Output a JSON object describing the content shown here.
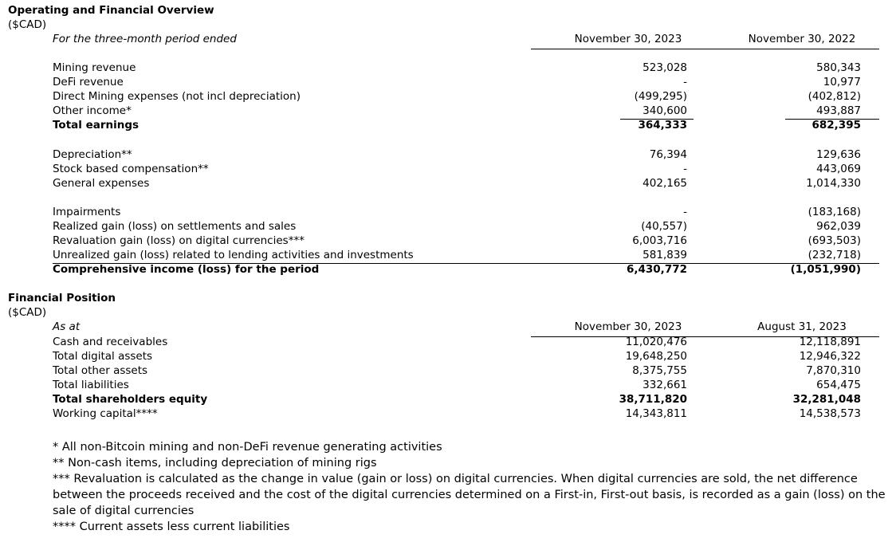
{
  "sections": [
    {
      "title": "Operating and Financial Overview",
      "unit": "($CAD)",
      "header": {
        "label": "For the three-month period ended",
        "columns": [
          "November 30, 2023",
          "November 30, 2022"
        ]
      },
      "groups": [
        [
          {
            "label": "Mining revenue",
            "values": [
              "523,028",
              "580,343"
            ]
          },
          {
            "label": "DeFi revenue",
            "values": [
              "-",
              "10,977"
            ]
          },
          {
            "label": "Direct Mining expenses (not incl depreciation)",
            "values": [
              "(499,295)",
              "(402,812)"
            ]
          },
          {
            "label": "Other income*",
            "values": [
              "340,600",
              "493,887"
            ]
          },
          {
            "label": "Total earnings",
            "values": [
              "364,333",
              "682,395"
            ],
            "bold": true,
            "rule_above": true
          }
        ],
        [
          {
            "label": "Depreciation**",
            "values": [
              "76,394",
              "129,636"
            ]
          },
          {
            "label": "Stock based compensation**",
            "values": [
              "-",
              "443,069"
            ]
          },
          {
            "label": "General expenses",
            "values": [
              "402,165",
              "1,014,330"
            ]
          }
        ],
        [
          {
            "label": "Impairments",
            "values": [
              "-",
              "(183,168)"
            ]
          },
          {
            "label": "Realized gain (loss) on settlements and sales",
            "values": [
              "(40,557)",
              "962,039"
            ]
          },
          {
            "label": "Revaluation gain (loss) on digital currencies***",
            "values": [
              "6,003,716",
              "(693,503)"
            ]
          },
          {
            "label": "Unrealized gain (loss) related to lending activities and investments",
            "values": [
              "581,839",
              "(232,718)"
            ]
          },
          {
            "label": "Comprehensive income (loss) for the period",
            "values": [
              "6,430,772",
              "(1,051,990)"
            ],
            "bold": true,
            "rule_above": true,
            "rule_full": true
          }
        ]
      ]
    },
    {
      "title": "Financial Position",
      "unit": "($CAD)",
      "header": {
        "label": "As at",
        "columns": [
          "November 30, 2023",
          "August 31, 2023"
        ]
      },
      "groups": [
        [
          {
            "label": "Cash and receivables",
            "values": [
              "11,020,476",
              "12,118,891"
            ]
          },
          {
            "label": "Total digital assets",
            "values": [
              "19,648,250",
              "12,946,322"
            ]
          },
          {
            "label": "Total other assets",
            "values": [
              "8,375,755",
              "7,870,310"
            ]
          },
          {
            "label": "Total liabilities",
            "values": [
              "332,661",
              "654,475"
            ]
          },
          {
            "label": "Total shareholders equity",
            "values": [
              "38,711,820",
              "32,281,048"
            ],
            "bold": true
          },
          {
            "label": "Working capital****",
            "values": [
              "14,343,811",
              "14,538,573"
            ]
          }
        ]
      ]
    }
  ],
  "footnotes": [
    "* All non-Bitcoin mining and non-DeFi revenue generating activities",
    "** Non-cash items, including depreciation of mining rigs",
    "*** Revaluation is calculated as the change in value (gain or loss) on digital currencies. When digital currencies are sold, the net difference between the proceeds received and the cost of the digital currencies determined on a First-in, First-out basis, is recorded as a gain (loss) on the sale of digital currencies",
    "**** Current assets less current liabilities"
  ]
}
